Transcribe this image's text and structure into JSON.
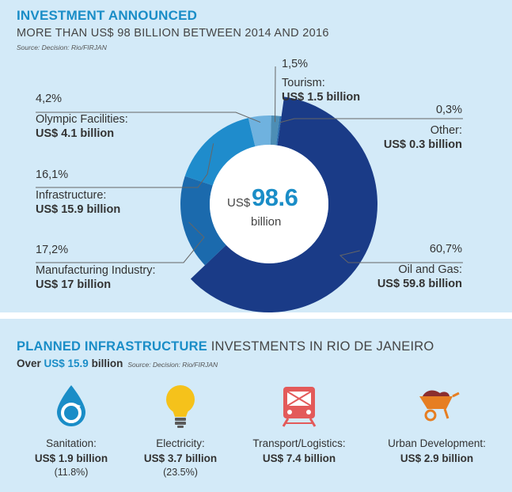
{
  "header": {
    "title": "INVESTMENT ANNOUNCED",
    "subtitle": "MORE THAN US$ 98 BILLION BETWEEN 2014 AND 2016",
    "source": "Source: Decision: Rio/FIRJAN"
  },
  "center": {
    "prefix": "US$",
    "value": "98.6",
    "unit": "billion"
  },
  "chart_data": {
    "type": "pie",
    "total": 98.6,
    "categories": [
      "Oil and Gas",
      "Manufacturing Industry",
      "Infrastructure",
      "Olympic Facilities",
      "Tourism",
      "Other"
    ],
    "values": [
      59.8,
      17,
      15.9,
      4.1,
      1.5,
      0.3
    ],
    "percentages": [
      60.7,
      17.2,
      16.1,
      4.2,
      1.5,
      0.3
    ],
    "colors": [
      "#1a3b87",
      "#1b6aad",
      "#1f8ccc",
      "#6fb2df",
      "#4d8eb5",
      "#2a6fb0"
    ],
    "labels": [
      {
        "pct": "60,7%",
        "name": "Oil and Gas:",
        "value": "US$ 59.8 billion"
      },
      {
        "pct": "17,2%",
        "name": "Manufacturing Industry:",
        "value": "US$ 17 billion"
      },
      {
        "pct": "16,1%",
        "name": "Infrastructure:",
        "value": "US$ 15.9 billion"
      },
      {
        "pct": "4,2%",
        "name": "Olympic Facilities:",
        "value": "US$ 4.1 billion"
      },
      {
        "pct": "1,5%",
        "name": "Tourism:",
        "value": "US$ 1.5 billion"
      },
      {
        "pct": "0,3%",
        "name": "Other:",
        "value": "US$ 0.3 billion"
      }
    ]
  },
  "infrastructure": {
    "title_strong": "PLANNED INFRASTRUCTURE",
    "title_rest": " INVESTMENTS IN RIO DE JANEIRO",
    "over_prefix": "Over ",
    "over_amount": "US$ 15.9",
    "over_suffix": " billion",
    "source": "Source: Decision: Rio/FIRJAN",
    "items": [
      {
        "icon": "water-drop-icon",
        "name": "Sanitation:",
        "value": "US$ 1.9 billion",
        "share": "(11.8%)"
      },
      {
        "icon": "light-bulb-icon",
        "name": "Electricity:",
        "value": "US$ 3.7 billion",
        "share": "(23.5%)"
      },
      {
        "icon": "train-icon",
        "name": "Transport/Logistics:",
        "value": "US$ 7.4 billion",
        "share": ""
      },
      {
        "icon": "wheelbarrow-icon",
        "name": "Urban Development:",
        "value": "US$ 2.9 billion",
        "share": ""
      }
    ],
    "colors": {
      "drop": "#1a8dc7",
      "bulb": "#f5c21b",
      "train": "#e35a5a",
      "barrow": "#e67e22"
    }
  }
}
